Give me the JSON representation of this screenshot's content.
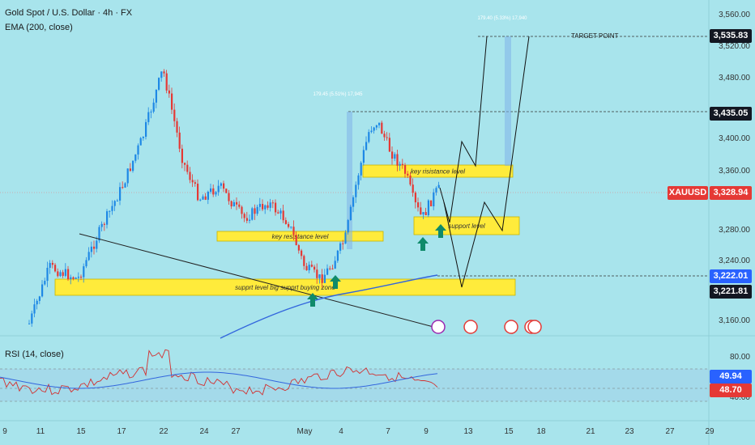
{
  "header": {
    "title": "Gold Spot / U.S. Dollar · 4h · FX",
    "ema_label": "EMA (200, close)",
    "rsi_label": "RSI (14, close)"
  },
  "colors": {
    "background": "#a8e4ec",
    "up_candle": "#1e88e5",
    "down_candle": "#e53935",
    "zone_fill": "#ffeb3b",
    "ema_line": "#3366dd",
    "rsi_line": "#d32f2f",
    "rsi_ma_line": "#3366dd",
    "arrow": "#0f8a6a",
    "target_box": "#7fb3ea"
  },
  "chart_data": {
    "type": "candlestick",
    "symbol": "XAUUSD",
    "current_price": "3,328.94",
    "y_axis_ticks": [
      "3,560.00",
      "3,520.00",
      "3,480.00",
      "3,400.00",
      "3,360.00",
      "3,280.00",
      "3,240.00",
      "3,160.00"
    ],
    "x_axis_ticks": [
      "9",
      "11",
      "15",
      "17",
      "22",
      "24",
      "27",
      "May",
      "4",
      "7",
      "9",
      "13",
      "15",
      "18",
      "21",
      "23",
      "27",
      "29"
    ],
    "price_labels": [
      {
        "text": "3,535.83",
        "style": "dark"
      },
      {
        "text": "3,435.05",
        "style": "dark"
      },
      {
        "text": "XAUUSD",
        "style": "symbol"
      },
      {
        "text": "3,328.94",
        "style": "red"
      },
      {
        "text": "3,222.01",
        "style": "blue"
      },
      {
        "text": "3,221.81",
        "style": "dark"
      }
    ],
    "zones": [
      {
        "label": "supprt level   big supprt buying zone"
      },
      {
        "label": "key resistance level"
      },
      {
        "label": "key risistance level"
      },
      {
        "label": "support level"
      }
    ],
    "annotations": {
      "target_point": "TARGET POINT",
      "measure_top": "179.40 (5.33%) 17,940",
      "measure_mid": "179.45 (5.51%) 17,945"
    },
    "rsi": {
      "ticks": [
        "80.00",
        "40.00"
      ],
      "value": "48.70",
      "ma_value": "49.94"
    }
  }
}
